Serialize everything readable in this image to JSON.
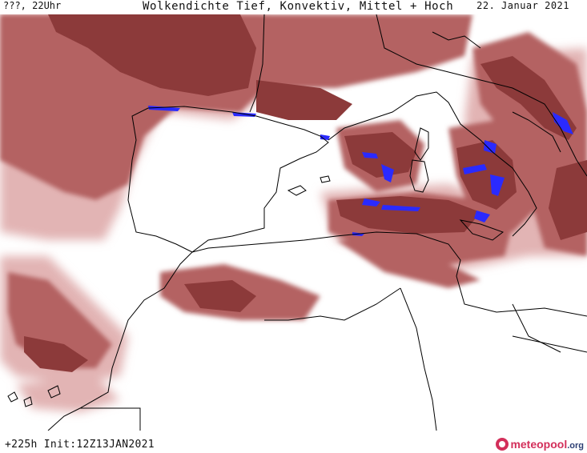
{
  "header": {
    "valid_time": "???, 22Uhr",
    "title": "Wolkendichte  Tief, Konvektiv, Mittel + Hoch",
    "date": "22. Januar 2021"
  },
  "footer": {
    "init_text": "+225h Init:12Z13JAN2021",
    "brand_name": "meteopool",
    "brand_tld": ".org"
  },
  "colors": {
    "cloud_dense": "#8c3a3a",
    "cloud_mid": "#b46262",
    "cloud_light": "#e2b4b4",
    "convective": "#2a2aff",
    "coastline": "#000000",
    "land_sea": "#ffffff",
    "brand_pink": "#d32f5a",
    "brand_navy": "#2c3e73"
  }
}
